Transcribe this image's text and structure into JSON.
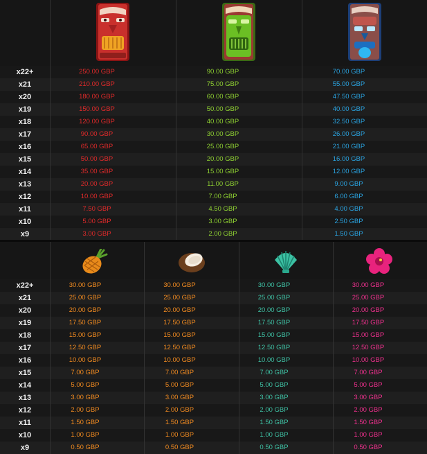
{
  "labels": [
    "x22+",
    "x21",
    "x20",
    "x19",
    "x18",
    "x17",
    "x16",
    "x15",
    "x14",
    "x13",
    "x12",
    "x11",
    "x10",
    "x9"
  ],
  "colors": {
    "red_mask": "#e02a2a",
    "green_mask": "#8fd132",
    "blue_mask": "#2aa3e0",
    "pineapple": "#f08a20",
    "coconut": "#f08a20",
    "shell": "#3fc2a5",
    "flower": "#f0308e"
  },
  "table_top": {
    "symbols": [
      {
        "icon": "red-tiki-mask-icon",
        "values": [
          "250.00 GBP",
          "210.00 GBP",
          "180.00 GBP",
          "150.00 GBP",
          "120.00 GBP",
          "90.00 GBP",
          "65.00 GBP",
          "50.00 GBP",
          "35.00 GBP",
          "20.00 GBP",
          "10.00 GBP",
          "7.50 GBP",
          "5.00 GBP",
          "3.00 GBP"
        ]
      },
      {
        "icon": "green-tiki-mask-icon",
        "values": [
          "90.00 GBP",
          "75.00 GBP",
          "60.00 GBP",
          "50.00 GBP",
          "40.00 GBP",
          "30.00 GBP",
          "25.00 GBP",
          "20.00 GBP",
          "15.00 GBP",
          "11.00 GBP",
          "7.00 GBP",
          "4.50 GBP",
          "3.00 GBP",
          "2.00 GBP"
        ]
      },
      {
        "icon": "blue-tiki-mask-icon",
        "values": [
          "70.00 GBP",
          "55.00 GBP",
          "47.50 GBP",
          "40.00 GBP",
          "32.50 GBP",
          "26.00 GBP",
          "21.00 GBP",
          "16.00 GBP",
          "12.00 GBP",
          "9.00 GBP",
          "6.00 GBP",
          "4.00 GBP",
          "2.50 GBP",
          "1.50 GBP"
        ]
      }
    ]
  },
  "table_bottom": {
    "symbols": [
      {
        "icon": "pineapple-icon",
        "values": [
          "30.00 GBP",
          "25.00 GBP",
          "20.00 GBP",
          "17.50 GBP",
          "15.00 GBP",
          "12.50 GBP",
          "10.00 GBP",
          "7.00 GBP",
          "5.00 GBP",
          "3.00 GBP",
          "2.00 GBP",
          "1.50 GBP",
          "1.00 GBP",
          "0.50 GBP"
        ]
      },
      {
        "icon": "coconut-icon",
        "values": [
          "30.00 GBP",
          "25.00 GBP",
          "20.00 GBP",
          "17.50 GBP",
          "15.00 GBP",
          "12.50 GBP",
          "10.00 GBP",
          "7.00 GBP",
          "5.00 GBP",
          "3.00 GBP",
          "2.00 GBP",
          "1.50 GBP",
          "1.00 GBP",
          "0.50 GBP"
        ]
      },
      {
        "icon": "shell-icon",
        "values": [
          "30.00 GBP",
          "25.00 GBP",
          "20.00 GBP",
          "17.50 GBP",
          "15.00 GBP",
          "12.50 GBP",
          "10.00 GBP",
          "7.00 GBP",
          "5.00 GBP",
          "3.00 GBP",
          "2.00 GBP",
          "1.50 GBP",
          "1.00 GBP",
          "0.50 GBP"
        ]
      },
      {
        "icon": "hibiscus-flower-icon",
        "values": [
          "30.00 GBP",
          "25.00 GBP",
          "20.00 GBP",
          "17.50 GBP",
          "15.00 GBP",
          "12.50 GBP",
          "10.00 GBP",
          "7.00 GBP",
          "5.00 GBP",
          "3.00 GBP",
          "2.00 GBP",
          "1.50 GBP",
          "1.00 GBP",
          "0.50 GBP"
        ]
      }
    ]
  }
}
